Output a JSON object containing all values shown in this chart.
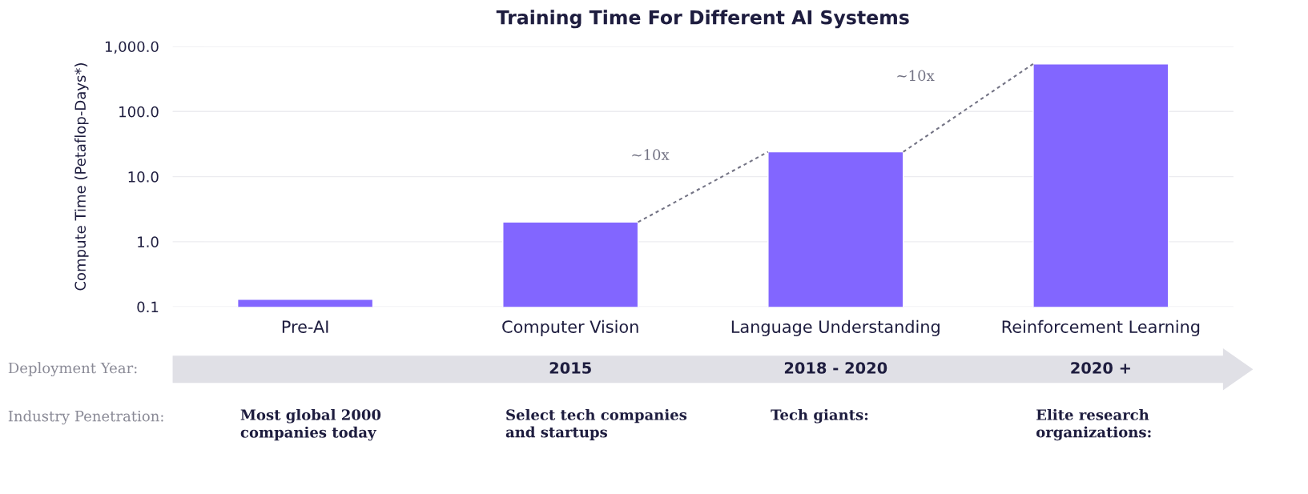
{
  "chart_data": {
    "type": "bar",
    "title": "Training Time For Different AI Systems",
    "ylabel": "Compute Time (Petaflop-Days*)",
    "categories": [
      "Pre-AI",
      "Computer Vision",
      "Language Understanding",
      "Reinforcement Learning"
    ],
    "values": [
      0.13,
      2.0,
      24,
      540
    ],
    "color": "#8266ff",
    "log": true,
    "ylim": [
      0.1,
      1000
    ],
    "yticks": [
      {
        "value": 0.1,
        "label": "0.1"
      },
      {
        "value": 1,
        "label": "1.0"
      },
      {
        "value": 10,
        "label": "10.0"
      },
      {
        "value": 100,
        "label": "100.0"
      },
      {
        "value": 1000,
        "label": "1,000.0"
      }
    ],
    "grid": "y",
    "annotations": [
      "~10x",
      "~10x",
      "Deployment Year:",
      "2015",
      "2018 - 2020",
      "2020 +",
      "Industry Penetration:",
      "Most global 2000\ncompanies today",
      "Select tech companies\nand startups",
      "Tech giants:",
      "Elite research\norganizations:"
    ]
  }
}
